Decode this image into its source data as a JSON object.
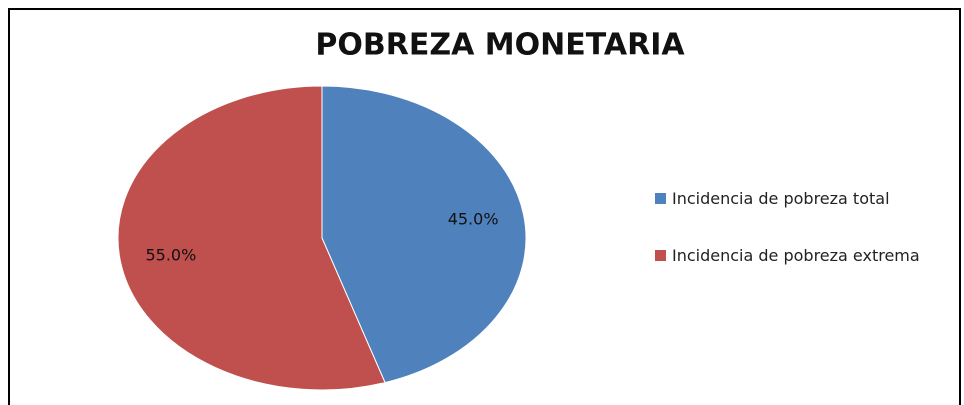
{
  "chart_data": {
    "type": "pie",
    "title": "POBREZA MONETARIA",
    "categories": [
      "Incidencia de pobreza total",
      "Incidencia de pobreza extrema"
    ],
    "values": [
      45.0,
      55.0
    ],
    "value_labels": [
      "45.0%",
      "55.0%"
    ],
    "colors": [
      "#4f81bd",
      "#c0504d"
    ],
    "legend": "right"
  }
}
